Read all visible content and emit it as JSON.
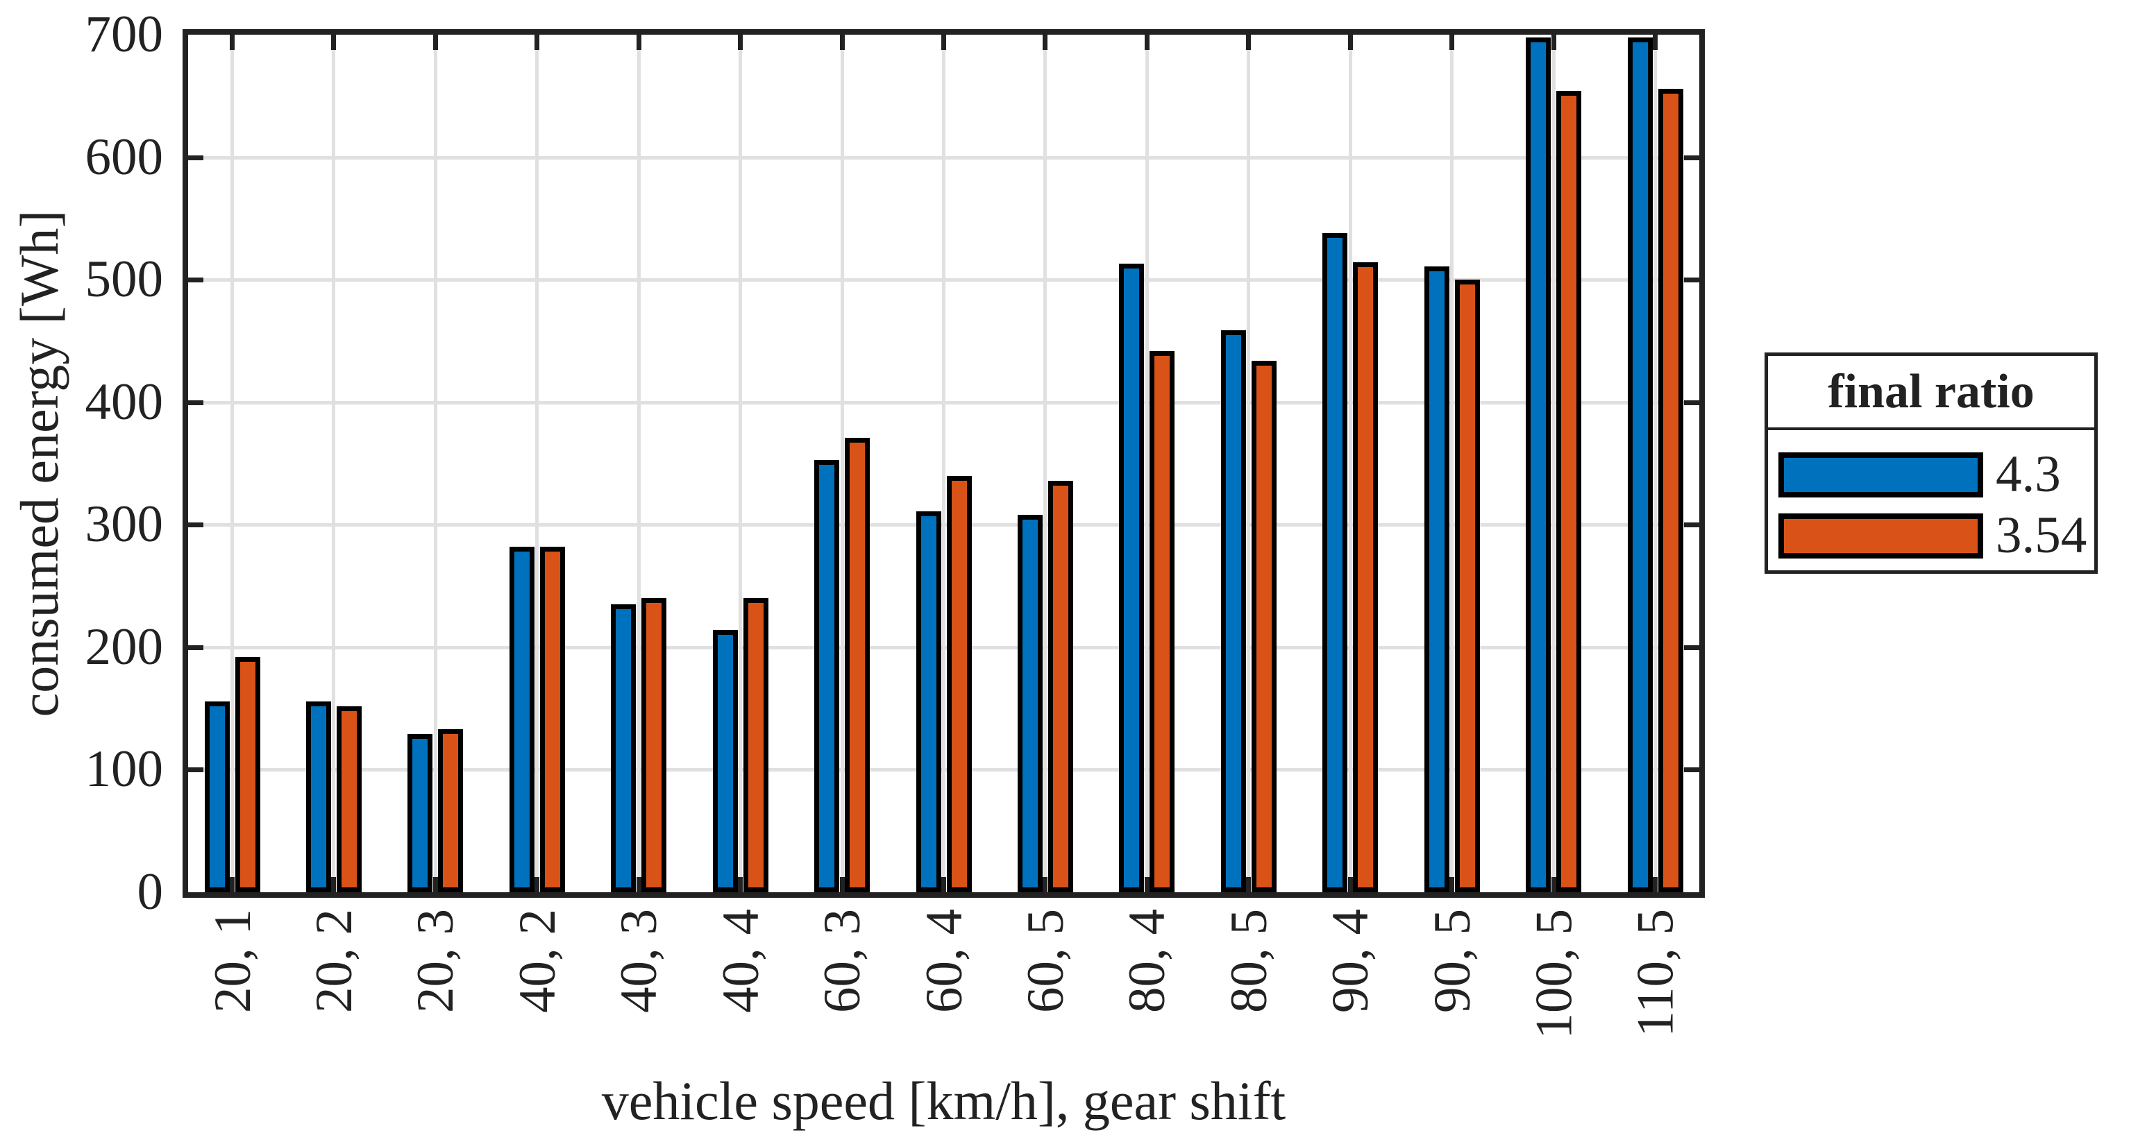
{
  "chart_data": {
    "type": "bar",
    "title": "",
    "xlabel": "vehicle speed [km/h], gear shift",
    "ylabel": "consumed energy [Wh]",
    "ylim": [
      0,
      700
    ],
    "yticks": [
      0,
      100,
      200,
      300,
      400,
      500,
      600,
      700
    ],
    "grid": "on",
    "legend_title": "final ratio",
    "legend_position": "right-outside",
    "categories": [
      "20, 1",
      "20, 2",
      "20, 3",
      "40, 2",
      "40, 3",
      "40, 4",
      "60, 3",
      "60, 4",
      "60, 5",
      "80, 4",
      "80, 5",
      "90, 4",
      "90, 5",
      "100, 5",
      "110, 5"
    ],
    "series": [
      {
        "name": "4.3",
        "color": "#0072BD",
        "values": [
          156,
          156,
          129,
          282,
          235,
          214,
          353,
          311,
          308,
          513,
          459,
          538,
          511,
          698,
          698
        ]
      },
      {
        "name": "3.54",
        "color": "#D95319",
        "values": [
          192,
          152,
          133,
          282,
          240,
          240,
          371,
          340,
          336,
          442,
          434,
          514,
          500,
          654,
          656
        ]
      }
    ],
    "colors": {
      "bar_edge": "#000000",
      "axis": "#222222",
      "grid": "#e0e0e0",
      "background": "#ffffff"
    }
  }
}
